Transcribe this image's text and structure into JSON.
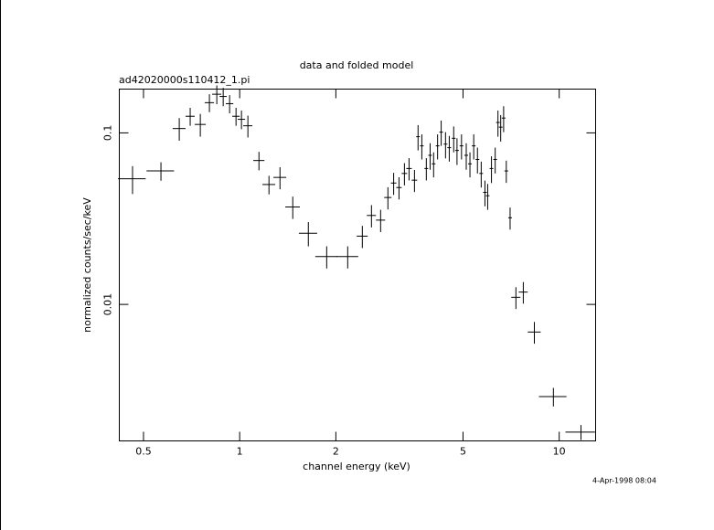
{
  "chart_data": {
    "type": "scatter",
    "title": "data and folded model",
    "subtitle": "ad42020000s110412_1.pi",
    "xlabel": "channel energy (keV)",
    "ylabel": "normalized counts/sec/keV",
    "annotation": "4-Apr-1998 08:04",
    "color": "#000000",
    "xscale": "log",
    "yscale": "log",
    "xlim": [
      0.42,
      13
    ],
    "ylim": [
      0.0016,
      0.18
    ],
    "xticks": [
      0.5,
      1,
      2,
      5,
      10
    ],
    "yticks": [
      0.01,
      0.1
    ],
    "x": [
      0.462,
      0.567,
      0.647,
      0.7,
      0.753,
      0.804,
      0.848,
      0.888,
      0.93,
      0.974,
      1.013,
      1.061,
      1.149,
      1.235,
      1.337,
      1.466,
      1.64,
      1.872,
      2.178,
      2.42,
      2.585,
      2.761,
      2.91,
      3.033,
      3.152,
      3.278,
      3.389,
      3.524,
      3.616,
      3.716,
      3.838,
      3.945,
      4.045,
      4.163,
      4.272,
      4.408,
      4.528,
      4.675,
      4.788,
      4.946,
      5.118,
      5.256,
      5.401,
      5.548,
      5.7,
      5.856,
      5.972,
      6.137,
      6.305,
      6.432,
      6.56,
      6.7,
      6.83,
      7.02,
      7.32,
      7.72,
      8.36,
      9.59,
      11.7
    ],
    "xerr": [
      0.046,
      0.056,
      0.03,
      0.023,
      0.03,
      0.027,
      0.028,
      0.023,
      0.025,
      0.026,
      0.027,
      0.035,
      0.046,
      0.057,
      0.062,
      0.077,
      0.108,
      0.148,
      0.172,
      0.096,
      0.085,
      0.091,
      0.077,
      0.06,
      0.062,
      0.065,
      0.067,
      0.07,
      0.048,
      0.049,
      0.051,
      0.052,
      0.053,
      0.055,
      0.056,
      0.058,
      0.06,
      0.062,
      0.063,
      0.065,
      0.068,
      0.069,
      0.071,
      0.073,
      0.075,
      0.077,
      0.079,
      0.081,
      0.083,
      0.085,
      0.087,
      0.088,
      0.09,
      0.093,
      0.24,
      0.25,
      0.39,
      0.95,
      1.24
    ],
    "y": [
      0.054,
      0.06,
      0.106,
      0.125,
      0.112,
      0.15,
      0.168,
      0.163,
      0.148,
      0.125,
      0.12,
      0.11,
      0.069,
      0.05,
      0.055,
      0.037,
      0.026,
      0.019,
      0.019,
      0.025,
      0.033,
      0.031,
      0.042,
      0.051,
      0.048,
      0.058,
      0.062,
      0.053,
      0.095,
      0.084,
      0.062,
      0.074,
      0.066,
      0.084,
      0.101,
      0.086,
      0.082,
      0.093,
      0.079,
      0.084,
      0.074,
      0.066,
      0.084,
      0.07,
      0.058,
      0.045,
      0.043,
      0.062,
      0.07,
      0.115,
      0.108,
      0.122,
      0.06,
      0.032,
      0.011,
      0.0118,
      0.0069,
      0.0029,
      0.0018
    ],
    "yerr": [
      0.01,
      0.0074,
      0.016,
      0.015,
      0.017,
      0.018,
      0.021,
      0.02,
      0.018,
      0.015,
      0.015,
      0.016,
      0.0085,
      0.0062,
      0.0081,
      0.0055,
      0.0042,
      0.0028,
      0.0028,
      0.0037,
      0.0049,
      0.0046,
      0.0062,
      0.0075,
      0.0071,
      0.0086,
      0.0092,
      0.0078,
      0.016,
      0.014,
      0.0092,
      0.013,
      0.011,
      0.014,
      0.017,
      0.015,
      0.014,
      0.016,
      0.014,
      0.014,
      0.013,
      0.011,
      0.014,
      0.012,
      0.01,
      0.0077,
      0.0074,
      0.011,
      0.012,
      0.02,
      0.019,
      0.021,
      0.0089,
      0.0047,
      0.0016,
      0.0017,
      0.001,
      0.00036,
      0.00018
    ]
  }
}
